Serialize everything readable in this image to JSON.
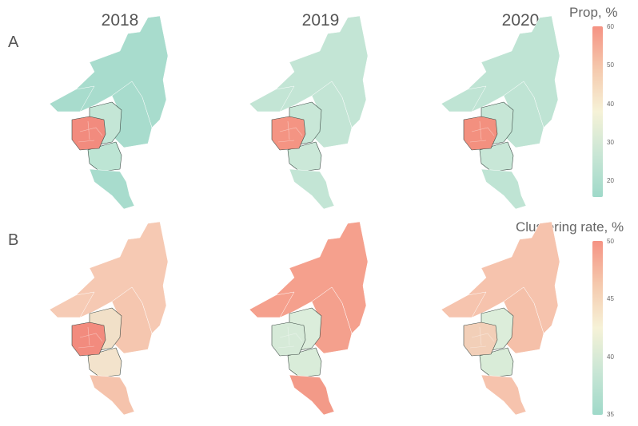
{
  "years": [
    "2018",
    "2019",
    "2020"
  ],
  "panels": [
    {
      "letter": "A",
      "legend_title": "Prop, %",
      "colorbar": {
        "min_label": "",
        "ticks": [
          "60",
          "50",
          "40",
          "30",
          "20"
        ],
        "colors": [
          "#f59283",
          "#f5c9ad",
          "#f6f2d7",
          "#c9e6d5",
          "#9fd9c9"
        ]
      },
      "fills": {
        "2018": {
          "north": "#a8dccd",
          "east": "#a8dccd",
          "west_arm": "#a8dccd",
          "core": "#f28b7e",
          "middle": "#bde5d4",
          "south": "#a8dccd",
          "inner": "#c4e6d6"
        },
        "2019": {
          "north": "#c3e5d5",
          "east": "#c3e5d5",
          "west_arm": "#c3e5d5",
          "core": "#f49483",
          "middle": "#cbe8d8",
          "south": "#c3e5d5",
          "inner": "#c8e7d7"
        },
        "2020": {
          "north": "#bfe4d4",
          "east": "#bfe4d4",
          "west_arm": "#bfe4d4",
          "core": "#f3907f",
          "middle": "#c8e7d7",
          "south": "#bfe4d4",
          "inner": "#c6e6d6"
        }
      }
    },
    {
      "letter": "B",
      "legend_title": "Clustering rate, %",
      "colorbar": {
        "ticks": [
          "50",
          "45",
          "40",
          "35"
        ],
        "colors": [
          "#f59283",
          "#f5c9ad",
          "#f6f2d7",
          "#c9e6d5",
          "#9fd9c9"
        ]
      },
      "fills": {
        "2018": {
          "north": "#f6c9b3",
          "east": "#f5c6af",
          "west_arm": "#f6cbb5",
          "core": "#f28b7e",
          "middle": "#f3e3cc",
          "south": "#f5c3ac",
          "inner": "#f1e0c8"
        },
        "2019": {
          "north": "#f5a08d",
          "east": "#f4a08d",
          "west_arm": "#f5a08d",
          "core": "#d6ead8",
          "middle": "#d9ecd9",
          "south": "#f39a88",
          "inner": "#dbeddb"
        },
        "2020": {
          "north": "#f6c3ad",
          "east": "#f5c0a9",
          "west_arm": "#f6c4ae",
          "core": "#f2cfb8",
          "middle": "#d9ecd8",
          "south": "#f6c3ad",
          "inner": "#dcedda"
        }
      }
    }
  ]
}
